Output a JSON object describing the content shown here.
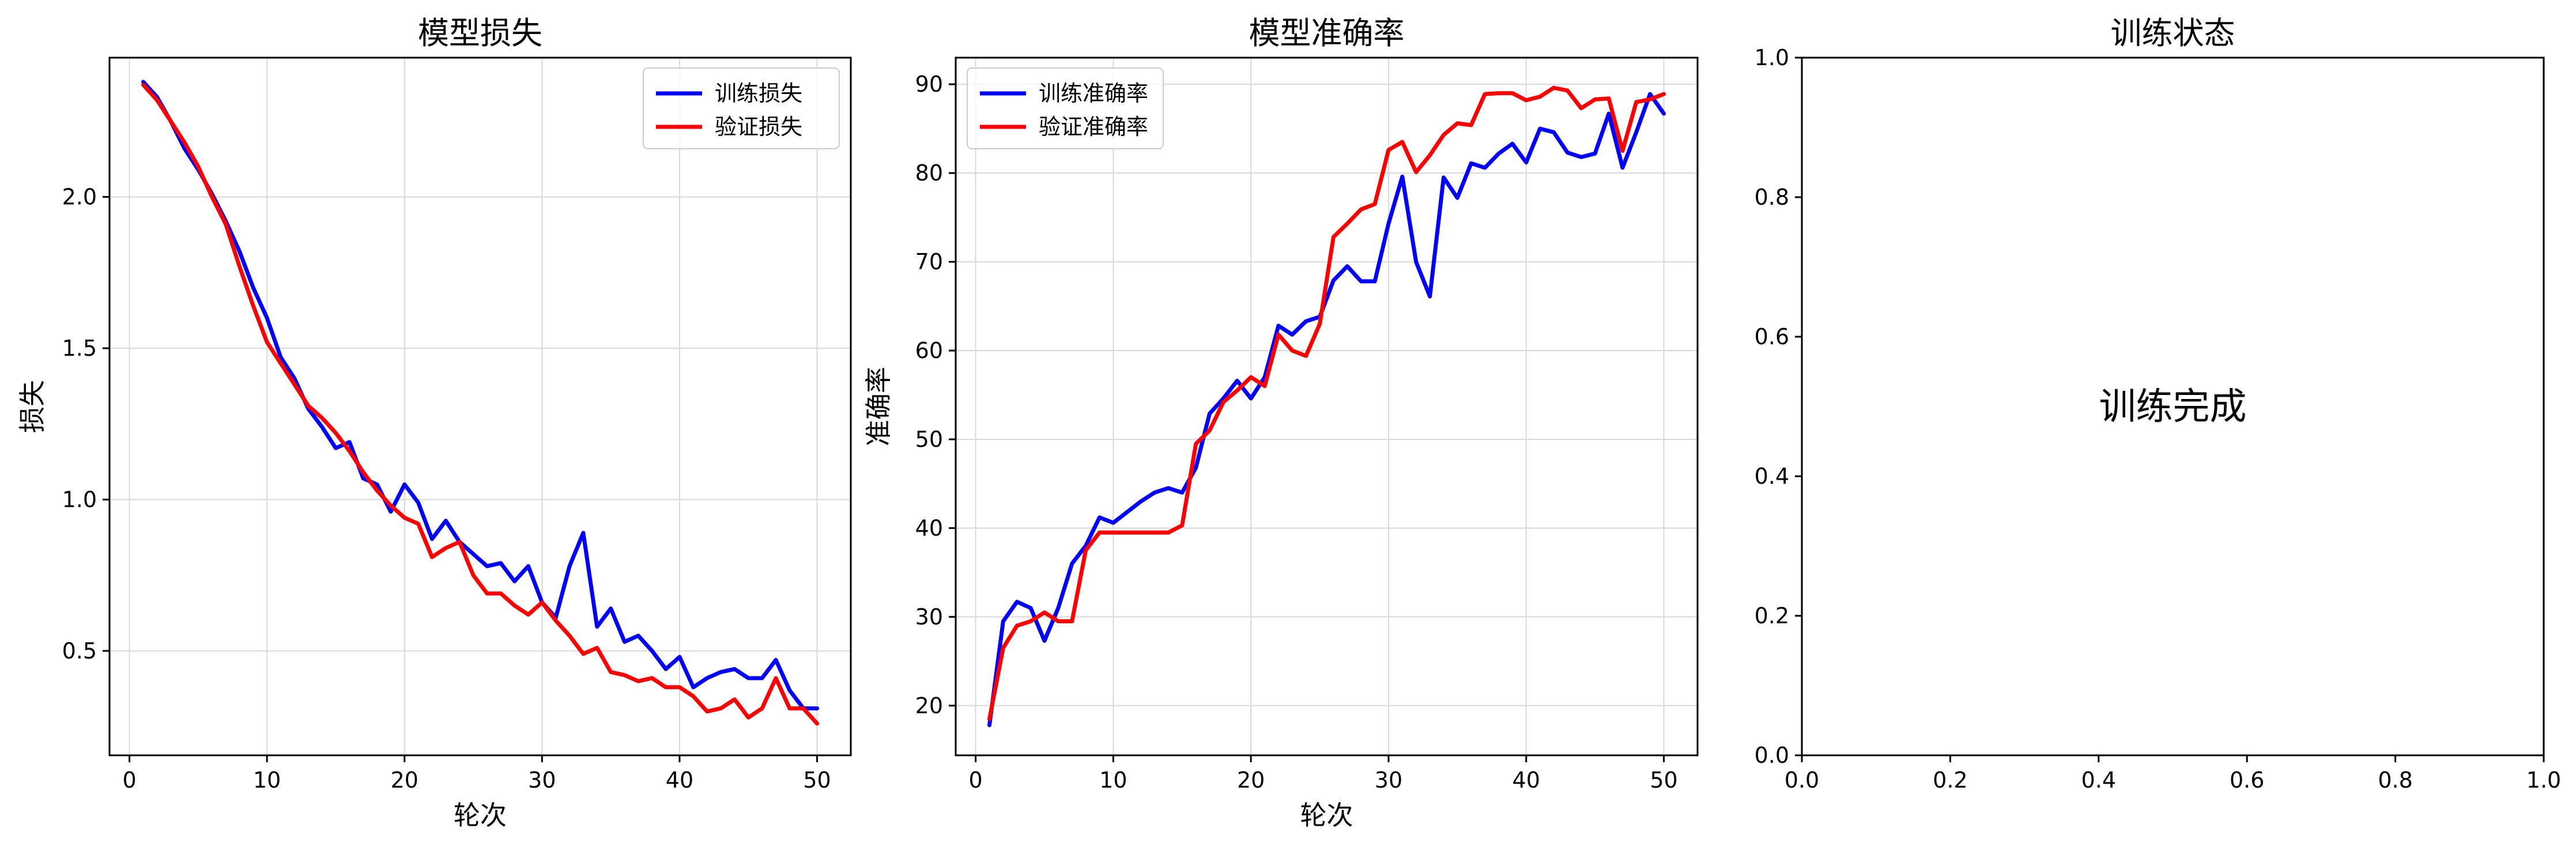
{
  "chart_data": [
    {
      "type": "line",
      "title": "模型损失",
      "xlabel": "轮次",
      "ylabel": "损失",
      "xlim": [
        -1.45,
        52.45
      ],
      "ylim": [
        0.155,
        2.46
      ],
      "xticks": [
        0,
        10,
        20,
        30,
        40,
        50
      ],
      "xtick_labels": [
        "0",
        "10",
        "20",
        "30",
        "40",
        "50"
      ],
      "yticks": [
        0.5,
        1.0,
        1.5,
        2.0
      ],
      "ytick_labels": [
        "0.5",
        "1.0",
        "1.5",
        "2.0"
      ],
      "grid": true,
      "legend_position": "top-right",
      "x": [
        1,
        2,
        3,
        4,
        5,
        6,
        7,
        8,
        9,
        10,
        11,
        12,
        13,
        14,
        15,
        16,
        17,
        18,
        19,
        20,
        21,
        22,
        23,
        24,
        25,
        26,
        27,
        28,
        29,
        30,
        31,
        32,
        33,
        34,
        35,
        36,
        37,
        38,
        39,
        40,
        41,
        42,
        43,
        44,
        45,
        46,
        47,
        48,
        49,
        50
      ],
      "series": [
        {
          "name": "训练损失",
          "color": "#0000ff",
          "values": [
            2.38,
            2.33,
            2.25,
            2.16,
            2.09,
            2.01,
            1.92,
            1.82,
            1.7,
            1.6,
            1.47,
            1.4,
            1.3,
            1.24,
            1.17,
            1.19,
            1.07,
            1.05,
            0.96,
            1.05,
            0.99,
            0.87,
            0.93,
            0.86,
            0.82,
            0.78,
            0.79,
            0.73,
            0.78,
            0.66,
            0.61,
            0.78,
            0.89,
            0.58,
            0.64,
            0.53,
            0.55,
            0.5,
            0.44,
            0.48,
            0.38,
            0.41,
            0.43,
            0.44,
            0.41,
            0.41,
            0.47,
            0.37,
            0.31,
            0.31
          ]
        },
        {
          "name": "验证损失",
          "color": "#ff0000",
          "values": [
            2.37,
            2.32,
            2.25,
            2.18,
            2.1,
            2.0,
            1.91,
            1.77,
            1.64,
            1.52,
            1.45,
            1.38,
            1.31,
            1.27,
            1.22,
            1.16,
            1.09,
            1.03,
            0.98,
            0.94,
            0.92,
            0.81,
            0.84,
            0.86,
            0.75,
            0.69,
            0.69,
            0.65,
            0.62,
            0.66,
            0.6,
            0.55,
            0.49,
            0.51,
            0.43,
            0.42,
            0.4,
            0.41,
            0.38,
            0.38,
            0.35,
            0.3,
            0.31,
            0.34,
            0.28,
            0.31,
            0.41,
            0.31,
            0.31,
            0.26
          ]
        }
      ]
    },
    {
      "type": "line",
      "title": "模型准确率",
      "xlabel": "轮次",
      "ylabel": "准确率",
      "xlim": [
        -1.45,
        52.45
      ],
      "ylim": [
        14.4,
        93.0
      ],
      "xticks": [
        0,
        10,
        20,
        30,
        40,
        50
      ],
      "xtick_labels": [
        "0",
        "10",
        "20",
        "30",
        "40",
        "50"
      ],
      "yticks": [
        20,
        30,
        40,
        50,
        60,
        70,
        80,
        90
      ],
      "ytick_labels": [
        "20",
        "30",
        "40",
        "50",
        "60",
        "70",
        "80",
        "90"
      ],
      "grid": true,
      "legend_position": "top-left",
      "x": [
        1,
        2,
        3,
        4,
        5,
        6,
        7,
        8,
        9,
        10,
        11,
        12,
        13,
        14,
        15,
        16,
        17,
        18,
        19,
        20,
        21,
        22,
        23,
        24,
        25,
        26,
        27,
        28,
        29,
        30,
        31,
        32,
        33,
        34,
        35,
        36,
        37,
        38,
        39,
        40,
        41,
        42,
        43,
        44,
        45,
        46,
        47,
        48,
        49,
        50
      ],
      "series": [
        {
          "name": "训练准确率",
          "color": "#0000ff",
          "values": [
            17.8,
            29.5,
            31.7,
            31.0,
            27.3,
            31.0,
            36.0,
            38.0,
            41.2,
            40.6,
            41.8,
            43.0,
            44.0,
            44.5,
            44.0,
            46.8,
            52.9,
            54.6,
            56.6,
            54.6,
            57.0,
            62.8,
            61.8,
            63.3,
            63.8,
            67.9,
            69.5,
            67.8,
            67.8,
            74.3,
            79.6,
            70.0,
            66.1,
            79.5,
            77.2,
            81.1,
            80.6,
            82.2,
            83.3,
            81.2,
            85.0,
            84.6,
            82.3,
            81.8,
            82.2,
            86.7,
            80.6,
            84.6,
            88.9,
            86.7
          ]
        },
        {
          "name": "验证准确率",
          "color": "#ff0000",
          "values": [
            18.5,
            26.5,
            29.0,
            29.5,
            30.5,
            29.5,
            29.5,
            37.5,
            39.5,
            39.5,
            39.5,
            39.5,
            39.5,
            39.5,
            40.3,
            49.5,
            51.0,
            54.2,
            55.5,
            57.0,
            56.0,
            61.8,
            60.0,
            59.4,
            63.0,
            72.8,
            74.3,
            75.9,
            76.5,
            82.6,
            83.5,
            80.1,
            82.0,
            84.3,
            85.6,
            85.4,
            88.9,
            89.0,
            89.0,
            88.2,
            88.6,
            89.6,
            89.3,
            87.3,
            88.3,
            88.4,
            82.5,
            88.0,
            88.3,
            88.9
          ]
        }
      ]
    },
    {
      "type": "text",
      "title": "训练状态",
      "xlim": [
        0.0,
        1.0
      ],
      "ylim": [
        0.0,
        1.0
      ],
      "xticks": [
        0.0,
        0.2,
        0.4,
        0.6,
        0.8,
        1.0
      ],
      "xtick_labels": [
        "0.0",
        "0.2",
        "0.4",
        "0.6",
        "0.8",
        "1.0"
      ],
      "yticks": [
        0.0,
        0.2,
        0.4,
        0.6,
        0.8,
        1.0
      ],
      "ytick_labels": [
        "0.0",
        "0.2",
        "0.4",
        "0.6",
        "0.8",
        "1.0"
      ],
      "grid": false,
      "center_text": "训练完成"
    }
  ]
}
